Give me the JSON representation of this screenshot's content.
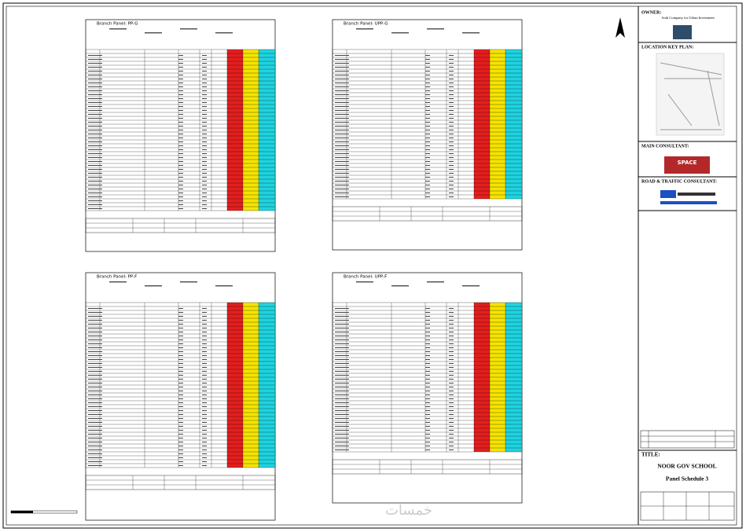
{
  "panels": [
    {
      "title": "Branch Panel: PP-G"
    },
    {
      "title": "Branch Panel: UPP-G"
    },
    {
      "title": "Branch Panel: PP-F"
    },
    {
      "title": "Branch Panel: UPP-F"
    }
  ],
  "title_block": {
    "owner_label": "OWNER:",
    "owner": "Arab Company for Urban Investment",
    "key_plan_label": "LOCATION KEY PLAN:",
    "main_consultant_label": "MAIN CONSULTANT:",
    "main_consultant_logo": "SPACE",
    "traffic_consultant_label": "ROAD & TRAFFIC CONSULTANT:",
    "title_label": "TITLE:",
    "project": "NOOR GOV SCHOOL",
    "sheet_title": "Panel Schedule 3"
  },
  "watermark": "خمسات"
}
